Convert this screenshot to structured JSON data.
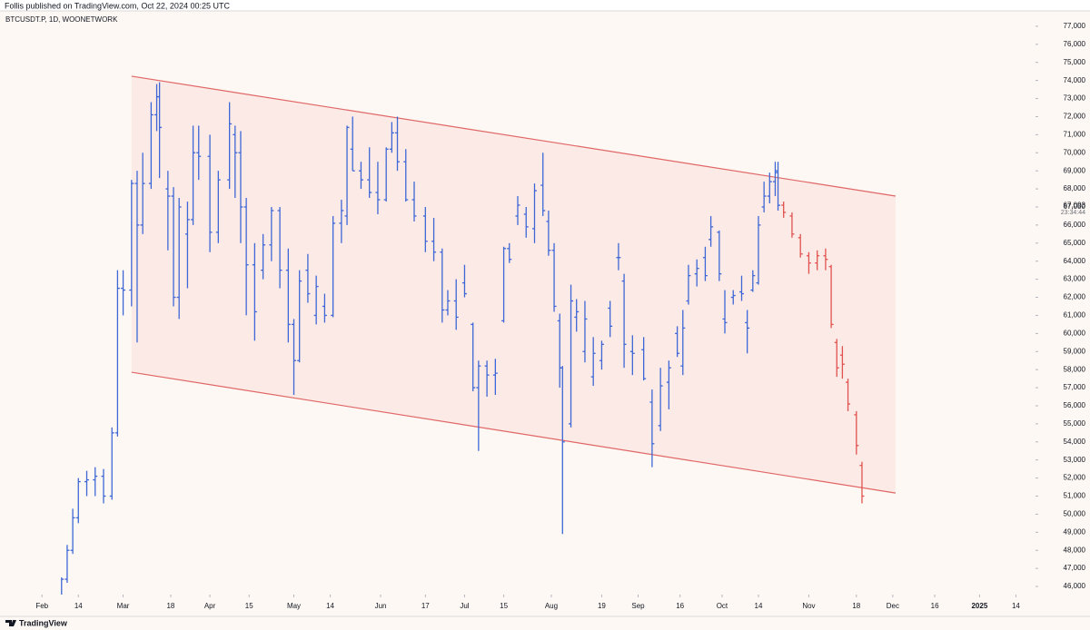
{
  "header": {
    "published": "Follis published on TradingView.com, Oct 22, 2024 00:25 UTC"
  },
  "footer": {
    "brand": "TradingView"
  },
  "chart_data": {
    "type": "ohlc",
    "symbol": "BTCUSDT.P, 1D, WOONETWORK",
    "xlim": [
      "2024-01-17",
      "2025-01-21"
    ],
    "ylim": [
      45550,
      77850
    ],
    "yticks": [
      {
        "value": 46000,
        "label": "46,000"
      },
      {
        "value": 47000,
        "label": "47,000"
      },
      {
        "value": 48000,
        "label": "48,000"
      },
      {
        "value": 49000,
        "label": "49,000"
      },
      {
        "value": 50000,
        "label": "50,000"
      },
      {
        "value": 51000,
        "label": "51,000"
      },
      {
        "value": 52000,
        "label": "52,000"
      },
      {
        "value": 53000,
        "label": "53,000"
      },
      {
        "value": 54000,
        "label": "54,000"
      },
      {
        "value": 55000,
        "label": "55,000"
      },
      {
        "value": 56000,
        "label": "56,000"
      },
      {
        "value": 57000,
        "label": "57,000"
      },
      {
        "value": 58000,
        "label": "58,000"
      },
      {
        "value": 59000,
        "label": "59,000"
      },
      {
        "value": 60000,
        "label": "60,000"
      },
      {
        "value": 61000,
        "label": "61,000"
      },
      {
        "value": 62000,
        "label": "62,000"
      },
      {
        "value": 63000,
        "label": "63,000"
      },
      {
        "value": 64000,
        "label": "64,000"
      },
      {
        "value": 65000,
        "label": "65,000"
      },
      {
        "value": 66000,
        "label": "66,000"
      },
      {
        "value": 67000,
        "label": "67,000"
      },
      {
        "value": 68000,
        "label": "68,000"
      },
      {
        "value": 69000,
        "label": "69,000"
      },
      {
        "value": 70000,
        "label": "70,000"
      },
      {
        "value": 71000,
        "label": "71,000"
      },
      {
        "value": 72000,
        "label": "72,000"
      },
      {
        "value": 73000,
        "label": "73,000"
      },
      {
        "value": 74000,
        "label": "74,000"
      },
      {
        "value": 75000,
        "label": "75,000"
      },
      {
        "value": 76000,
        "label": "76,000"
      },
      {
        "value": 77000,
        "label": "77,000"
      }
    ],
    "xticks": [
      {
        "value": "2024-02-01",
        "label": "Feb"
      },
      {
        "value": "2024-02-14",
        "label": "14"
      },
      {
        "value": "2024-03-01",
        "label": "Mar"
      },
      {
        "value": "2024-03-18",
        "label": "18"
      },
      {
        "value": "2024-04-01",
        "label": "Apr"
      },
      {
        "value": "2024-04-15",
        "label": "15"
      },
      {
        "value": "2024-05-01",
        "label": "May"
      },
      {
        "value": "2024-05-14",
        "label": "14"
      },
      {
        "value": "2024-06-01",
        "label": "Jun"
      },
      {
        "value": "2024-06-17",
        "label": "17"
      },
      {
        "value": "2024-07-01",
        "label": "Jul"
      },
      {
        "value": "2024-07-15",
        "label": "15"
      },
      {
        "value": "2024-08-01",
        "label": "Aug"
      },
      {
        "value": "2024-08-19",
        "label": "19"
      },
      {
        "value": "2024-09-01",
        "label": "Sep"
      },
      {
        "value": "2024-09-16",
        "label": "16"
      },
      {
        "value": "2024-10-01",
        "label": "Oct"
      },
      {
        "value": "2024-10-14",
        "label": "14"
      },
      {
        "value": "2024-11-01",
        "label": "Nov"
      },
      {
        "value": "2024-11-18",
        "label": "18"
      },
      {
        "value": "2024-12-01",
        "label": "Dec"
      },
      {
        "value": "2024-12-16",
        "label": "16"
      },
      {
        "value": "2025-01-01",
        "label": "2025"
      },
      {
        "value": "2025-01-14",
        "label": "14"
      }
    ],
    "last_price": {
      "value": 67093,
      "label": "67,093"
    },
    "countdown": "23:34:44",
    "channel": {
      "color": "#e06666",
      "fill": "#fbe6e2",
      "upper": [
        [
          "2024-03-04",
          74236
        ],
        [
          "2024-12-02",
          67603
        ]
      ],
      "lower": [
        [
          "2024-03-04",
          57854
        ],
        [
          "2024-12-02",
          51171
        ]
      ]
    },
    "series": [
      {
        "color": "#3d67d6",
        "x": [
          "2024-02-08",
          "2024-02-10",
          "2024-02-12",
          "2024-02-14",
          "2024-02-17",
          "2024-02-20",
          "2024-02-23",
          "2024-02-26",
          "2024-02-28",
          "2024-03-01",
          "2024-03-04",
          "2024-03-06",
          "2024-03-08",
          "2024-03-11",
          "2024-03-13",
          "2024-03-14",
          "2024-03-17",
          "2024-03-19",
          "2024-03-21",
          "2024-03-24",
          "2024-03-26",
          "2024-03-28",
          "2024-04-01",
          "2024-04-04",
          "2024-04-08",
          "2024-04-10",
          "2024-04-12",
          "2024-04-14",
          "2024-04-17",
          "2024-04-20",
          "2024-04-23",
          "2024-04-26",
          "2024-04-29",
          "2024-05-01",
          "2024-05-03",
          "2024-05-06",
          "2024-05-09",
          "2024-05-12",
          "2024-05-15",
          "2024-05-18",
          "2024-05-20",
          "2024-05-22",
          "2024-05-25",
          "2024-05-28",
          "2024-05-31",
          "2024-06-03",
          "2024-06-05",
          "2024-06-07",
          "2024-06-10",
          "2024-06-13",
          "2024-06-17",
          "2024-06-20",
          "2024-06-23",
          "2024-06-25",
          "2024-06-28",
          "2024-07-01",
          "2024-07-04",
          "2024-07-06",
          "2024-07-09",
          "2024-07-12",
          "2024-07-15",
          "2024-07-17",
          "2024-07-20",
          "2024-07-23",
          "2024-07-26",
          "2024-07-29",
          "2024-07-31",
          "2024-08-02",
          "2024-08-04",
          "2024-08-05",
          "2024-08-08",
          "2024-08-10",
          "2024-08-13",
          "2024-08-16",
          "2024-08-19",
          "2024-08-22",
          "2024-08-25",
          "2024-08-27",
          "2024-08-30",
          "2024-09-03",
          "2024-09-06",
          "2024-09-09",
          "2024-09-12",
          "2024-09-15",
          "2024-09-17",
          "2024-09-19",
          "2024-09-22",
          "2024-09-25",
          "2024-09-27",
          "2024-09-30",
          "2024-10-02",
          "2024-10-05",
          "2024-10-08",
          "2024-10-10",
          "2024-10-12",
          "2024-10-14",
          "2024-10-16",
          "2024-10-18",
          "2024-10-20",
          "2024-10-21"
        ],
        "values": [
          [
            45500,
            46500,
            45000,
            46400
          ],
          [
            46400,
            48300,
            46200,
            48000
          ],
          [
            48000,
            50300,
            47800,
            49800
          ],
          [
            49800,
            52000,
            49500,
            51800
          ],
          [
            51800,
            52400,
            51000,
            51900
          ],
          [
            51900,
            52600,
            51000,
            52100
          ],
          [
            52100,
            52500,
            50600,
            51000
          ],
          [
            51000,
            54800,
            50800,
            54500
          ],
          [
            54500,
            63500,
            54300,
            62500
          ],
          [
            62500,
            63500,
            61000,
            62400
          ],
          [
            62400,
            68500,
            61500,
            68300
          ],
          [
            68300,
            69000,
            59500,
            66000
          ],
          [
            66000,
            70000,
            65500,
            68300
          ],
          [
            68300,
            72800,
            68000,
            72100
          ],
          [
            72100,
            73800,
            71200,
            73100
          ],
          [
            73100,
            73900,
            68600,
            71400
          ],
          [
            68000,
            69000,
            64600,
            67600
          ],
          [
            67600,
            68100,
            61500,
            62000
          ],
          [
            62000,
            67500,
            60800,
            67000
          ],
          [
            65500,
            67300,
            62500,
            66300
          ],
          [
            66300,
            71500,
            66000,
            70000
          ],
          [
            70000,
            71500,
            68500,
            69800
          ],
          [
            69800,
            71000,
            64500,
            65600
          ],
          [
            65600,
            69000,
            65000,
            68500
          ],
          [
            68500,
            72800,
            68000,
            71600
          ],
          [
            71000,
            71500,
            67500,
            70000
          ],
          [
            70000,
            71200,
            65000,
            67000
          ],
          [
            67000,
            67500,
            61000,
            63800
          ],
          [
            63800,
            65000,
            59600,
            61200
          ],
          [
            63500,
            65500,
            63000,
            64900
          ],
          [
            64900,
            67000,
            64000,
            66800
          ],
          [
            66800,
            67000,
            62500,
            63500
          ],
          [
            63500,
            64700,
            59500,
            60500
          ],
          [
            60500,
            60800,
            56600,
            58500
          ],
          [
            58500,
            63500,
            58400,
            62900
          ],
          [
            63500,
            64400,
            61700,
            62200
          ],
          [
            61000,
            63200,
            60500,
            62600
          ],
          [
            61500,
            62200,
            60600,
            61000
          ],
          [
            61000,
            66500,
            60900,
            66100
          ],
          [
            66100,
            67400,
            65000,
            66800
          ],
          [
            66500,
            71500,
            66000,
            71400
          ],
          [
            70200,
            72000,
            69000,
            69000
          ],
          [
            69000,
            69500,
            68000,
            68500
          ],
          [
            68500,
            70300,
            67500,
            67800
          ],
          [
            67800,
            69500,
            66600,
            67400
          ],
          [
            67400,
            70300,
            67300,
            70200
          ],
          [
            70200,
            71700,
            70000,
            71100
          ],
          [
            71100,
            72000,
            69000,
            69500
          ],
          [
            69500,
            70200,
            67300,
            67400
          ],
          [
            67400,
            68400,
            66200,
            66500
          ],
          [
            66500,
            67000,
            64500,
            65100
          ],
          [
            65100,
            66400,
            64000,
            64500
          ],
          [
            64500,
            64700,
            60600,
            61300
          ],
          [
            61300,
            62400,
            61000,
            61800
          ],
          [
            61800,
            63000,
            60200,
            60900
          ],
          [
            62800,
            63800,
            62000,
            62200
          ],
          [
            60500,
            60600,
            56800,
            57000
          ],
          [
            57000,
            58500,
            53500,
            58200
          ],
          [
            58200,
            58500,
            56500,
            57700
          ],
          [
            57700,
            58600,
            56600,
            57800
          ],
          [
            60700,
            64800,
            60600,
            64700
          ],
          [
            64700,
            65000,
            63900,
            64100
          ],
          [
            66500,
            67600,
            66000,
            67100
          ],
          [
            66600,
            67000,
            65300,
            65900
          ],
          [
            65800,
            68300,
            65000,
            67900
          ],
          [
            68200,
            70000,
            66500,
            66800
          ],
          [
            66200,
            66800,
            64300,
            64600
          ],
          [
            64600,
            65000,
            61200,
            61500
          ],
          [
            60700,
            61100,
            57000,
            58100
          ],
          [
            58100,
            58200,
            48900,
            54000
          ],
          [
            55000,
            62700,
            54800,
            61800
          ],
          [
            60900,
            61900,
            60100,
            61200
          ],
          [
            59000,
            61800,
            58400,
            60800
          ],
          [
            57600,
            59800,
            57100,
            58900
          ],
          [
            58500,
            59600,
            58000,
            59400
          ],
          [
            61400,
            61800,
            59800,
            60400
          ],
          [
            64200,
            65000,
            63500,
            64200
          ],
          [
            62900,
            63300,
            58100,
            59400
          ],
          [
            59000,
            59900,
            57700,
            58900
          ],
          [
            59100,
            59800,
            57400,
            57500
          ],
          [
            56200,
            56900,
            52600,
            53900
          ],
          [
            54900,
            58100,
            54600,
            57100
          ],
          [
            57300,
            58500,
            55800,
            58100
          ],
          [
            60000,
            60400,
            58700,
            58900
          ],
          [
            58200,
            61300,
            57700,
            60300
          ],
          [
            61800,
            63800,
            61600,
            63200
          ],
          [
            63300,
            64100,
            62600,
            63600
          ],
          [
            64200,
            64800,
            62900,
            63200
          ],
          [
            65200,
            66500,
            64800,
            65900
          ],
          [
            65600,
            65700,
            62900,
            63300
          ],
          [
            60800,
            62400,
            60000,
            60600
          ],
          [
            62000,
            62400,
            61600,
            62100
          ],
          [
            62300,
            63200,
            61800,
            62200
          ],
          [
            60600,
            61300,
            58900,
            60300
          ],
          [
            62400,
            63500,
            62300,
            63200
          ],
          [
            62800,
            66500,
            62700,
            66000
          ],
          [
            67000,
            68400,
            66700,
            67600
          ],
          [
            67600,
            68900,
            67200,
            68400
          ],
          [
            68400,
            69500,
            67600,
            68900
          ],
          [
            69000,
            69500,
            66800,
            67093
          ]
        ]
      },
      {
        "color": "#e0524f",
        "x": [
          "2024-10-23",
          "2024-10-26",
          "2024-10-29",
          "2024-11-01",
          "2024-11-04",
          "2024-11-07",
          "2024-11-09",
          "2024-11-11",
          "2024-11-13",
          "2024-11-15",
          "2024-11-18",
          "2024-11-20"
        ],
        "values": [
          [
            67100,
            67300,
            66400,
            66700
          ],
          [
            66500,
            66700,
            65300,
            65500
          ],
          [
            65300,
            65500,
            64200,
            64400
          ],
          [
            64300,
            64500,
            63300,
            63900
          ],
          [
            63900,
            64600,
            63500,
            64300
          ],
          [
            64300,
            64700,
            63500,
            64100
          ],
          [
            63700,
            63800,
            60300,
            60500
          ],
          [
            59500,
            59700,
            57600,
            58100
          ],
          [
            58800,
            59300,
            57500,
            58300
          ],
          [
            57300,
            57500,
            55700,
            56100
          ],
          [
            55500,
            55700,
            53300,
            53800
          ],
          [
            52700,
            52900,
            50600,
            51000
          ]
        ]
      }
    ]
  }
}
